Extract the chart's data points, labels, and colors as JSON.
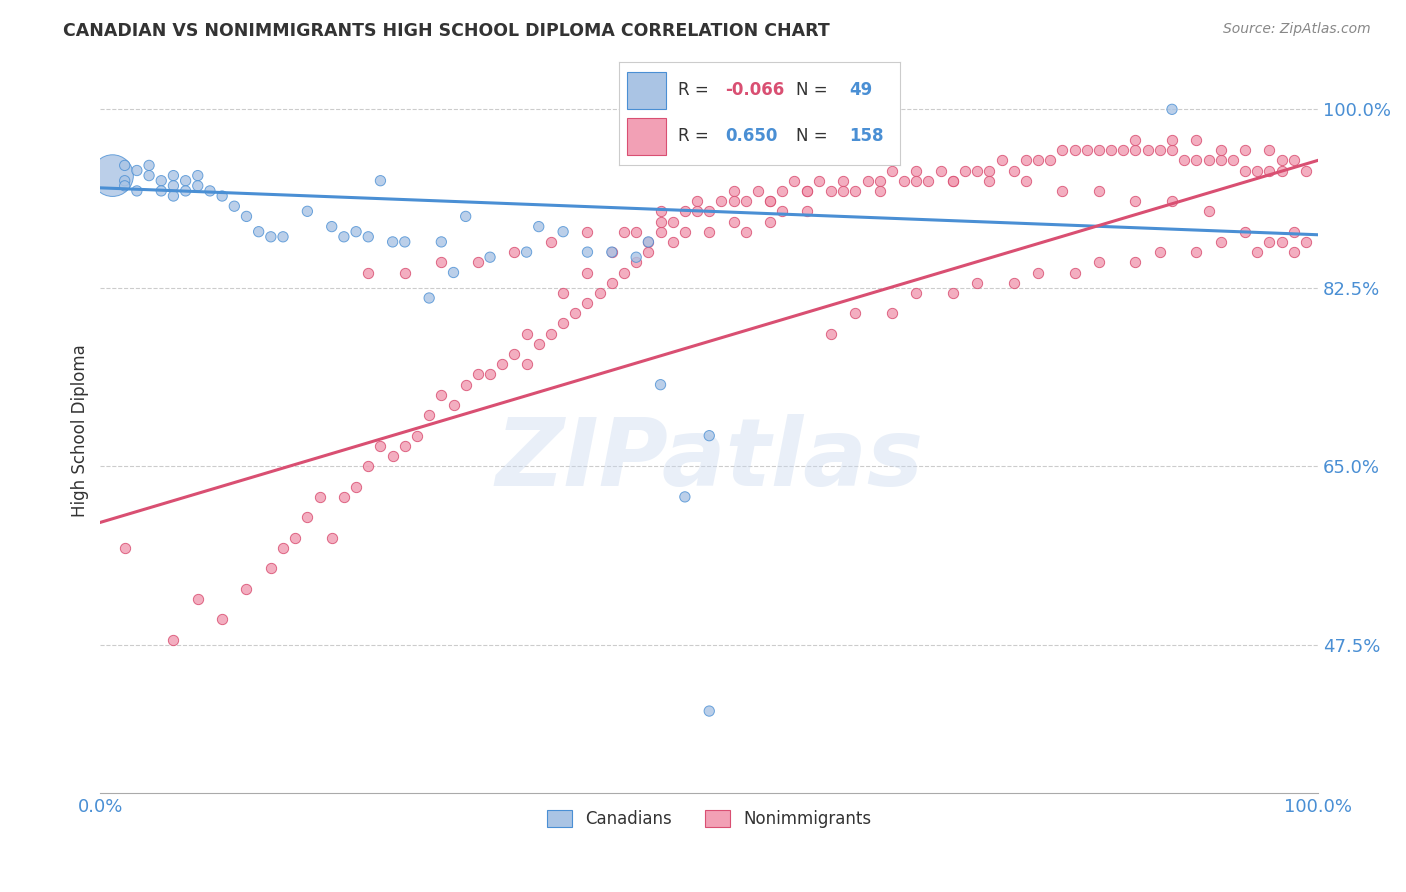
{
  "title": "CANADIAN VS NONIMMIGRANTS HIGH SCHOOL DIPLOMA CORRELATION CHART",
  "source": "Source: ZipAtlas.com",
  "ylabel": "High School Diploma",
  "xlim": [
    0,
    1
  ],
  "ylim": [
    0.33,
    1.04
  ],
  "yticks": [
    0.475,
    0.65,
    0.825,
    1.0
  ],
  "ytick_labels": [
    "47.5%",
    "65.0%",
    "82.5%",
    "100.0%"
  ],
  "xticks": [
    0.0,
    0.25,
    0.5,
    0.75,
    1.0
  ],
  "xtick_labels": [
    "0.0%",
    "",
    "",
    "",
    "100.0%"
  ],
  "legend_r_canadian": "-0.066",
  "legend_n_canadian": "49",
  "legend_r_nonimmigrant": "0.650",
  "legend_n_nonimmigrant": "158",
  "canadian_color": "#aac4e4",
  "nonimmigrant_color": "#f2a0b5",
  "canadian_line_color": "#4a8fd4",
  "nonimmigrant_line_color": "#d94f72",
  "background_color": "#ffffff",
  "grid_color": "#cccccc",
  "canadian_x": [
    0.01,
    0.02,
    0.02,
    0.02,
    0.03,
    0.03,
    0.04,
    0.04,
    0.05,
    0.05,
    0.06,
    0.06,
    0.06,
    0.07,
    0.07,
    0.08,
    0.08,
    0.09,
    0.1,
    0.11,
    0.12,
    0.13,
    0.14,
    0.15,
    0.17,
    0.19,
    0.2,
    0.21,
    0.22,
    0.23,
    0.24,
    0.25,
    0.27,
    0.28,
    0.29,
    0.3,
    0.32,
    0.35,
    0.36,
    0.38,
    0.4,
    0.42,
    0.44,
    0.45,
    0.46,
    0.48,
    0.5,
    0.88,
    0.5
  ],
  "canadian_y": [
    0.935,
    0.945,
    0.93,
    0.925,
    0.94,
    0.92,
    0.945,
    0.935,
    0.93,
    0.92,
    0.935,
    0.925,
    0.915,
    0.93,
    0.92,
    0.935,
    0.925,
    0.92,
    0.915,
    0.905,
    0.895,
    0.88,
    0.875,
    0.875,
    0.9,
    0.885,
    0.875,
    0.88,
    0.875,
    0.93,
    0.87,
    0.87,
    0.815,
    0.87,
    0.84,
    0.895,
    0.855,
    0.86,
    0.885,
    0.88,
    0.86,
    0.86,
    0.855,
    0.87,
    0.73,
    0.62,
    0.68,
    1.0,
    0.41
  ],
  "canadian_sizes_big": [
    0
  ],
  "nonimmigrant_x": [
    0.02,
    0.06,
    0.08,
    0.1,
    0.12,
    0.14,
    0.15,
    0.16,
    0.17,
    0.18,
    0.19,
    0.2,
    0.21,
    0.22,
    0.23,
    0.24,
    0.25,
    0.26,
    0.27,
    0.28,
    0.29,
    0.3,
    0.31,
    0.32,
    0.33,
    0.34,
    0.35,
    0.35,
    0.36,
    0.37,
    0.38,
    0.38,
    0.39,
    0.4,
    0.4,
    0.41,
    0.42,
    0.42,
    0.43,
    0.44,
    0.44,
    0.45,
    0.45,
    0.46,
    0.46,
    0.47,
    0.47,
    0.48,
    0.48,
    0.49,
    0.5,
    0.5,
    0.51,
    0.52,
    0.52,
    0.53,
    0.53,
    0.54,
    0.55,
    0.55,
    0.56,
    0.56,
    0.57,
    0.58,
    0.58,
    0.59,
    0.6,
    0.61,
    0.62,
    0.63,
    0.64,
    0.65,
    0.66,
    0.67,
    0.68,
    0.69,
    0.7,
    0.71,
    0.72,
    0.73,
    0.74,
    0.75,
    0.76,
    0.77,
    0.78,
    0.79,
    0.8,
    0.81,
    0.82,
    0.83,
    0.84,
    0.85,
    0.86,
    0.87,
    0.88,
    0.89,
    0.9,
    0.91,
    0.92,
    0.93,
    0.94,
    0.95,
    0.96,
    0.97,
    0.22,
    0.25,
    0.28,
    0.31,
    0.34,
    0.37,
    0.4,
    0.43,
    0.46,
    0.49,
    0.52,
    0.55,
    0.58,
    0.61,
    0.64,
    0.67,
    0.7,
    0.73,
    0.76,
    0.79,
    0.82,
    0.85,
    0.88,
    0.91,
    0.94,
    0.6,
    0.65,
    0.7,
    0.75,
    0.8,
    0.85,
    0.9,
    0.95,
    0.97,
    0.98,
    0.62,
    0.67,
    0.72,
    0.77,
    0.82,
    0.87,
    0.92,
    0.96,
    0.98,
    0.99,
    0.85,
    0.88,
    0.9,
    0.92,
    0.94,
    0.96,
    0.97,
    0.98,
    0.99
  ],
  "nonimmigrant_y": [
    0.57,
    0.48,
    0.52,
    0.5,
    0.53,
    0.55,
    0.57,
    0.58,
    0.6,
    0.62,
    0.58,
    0.62,
    0.63,
    0.65,
    0.67,
    0.66,
    0.67,
    0.68,
    0.7,
    0.72,
    0.71,
    0.73,
    0.74,
    0.74,
    0.75,
    0.76,
    0.75,
    0.78,
    0.77,
    0.78,
    0.79,
    0.82,
    0.8,
    0.81,
    0.84,
    0.82,
    0.83,
    0.86,
    0.84,
    0.85,
    0.88,
    0.87,
    0.86,
    0.88,
    0.9,
    0.89,
    0.87,
    0.9,
    0.88,
    0.91,
    0.9,
    0.88,
    0.91,
    0.89,
    0.92,
    0.91,
    0.88,
    0.92,
    0.91,
    0.89,
    0.92,
    0.9,
    0.93,
    0.92,
    0.9,
    0.93,
    0.92,
    0.93,
    0.92,
    0.93,
    0.93,
    0.94,
    0.93,
    0.94,
    0.93,
    0.94,
    0.93,
    0.94,
    0.94,
    0.94,
    0.95,
    0.94,
    0.95,
    0.95,
    0.95,
    0.96,
    0.96,
    0.96,
    0.96,
    0.96,
    0.96,
    0.96,
    0.96,
    0.96,
    0.96,
    0.95,
    0.95,
    0.95,
    0.95,
    0.95,
    0.94,
    0.94,
    0.94,
    0.94,
    0.84,
    0.84,
    0.85,
    0.85,
    0.86,
    0.87,
    0.88,
    0.88,
    0.89,
    0.9,
    0.91,
    0.91,
    0.92,
    0.92,
    0.92,
    0.93,
    0.93,
    0.93,
    0.93,
    0.92,
    0.92,
    0.91,
    0.91,
    0.9,
    0.88,
    0.78,
    0.8,
    0.82,
    0.83,
    0.84,
    0.85,
    0.86,
    0.86,
    0.87,
    0.86,
    0.8,
    0.82,
    0.83,
    0.84,
    0.85,
    0.86,
    0.87,
    0.87,
    0.88,
    0.87,
    0.97,
    0.97,
    0.97,
    0.96,
    0.96,
    0.96,
    0.95,
    0.95,
    0.94
  ],
  "blue_line_x": [
    0.0,
    1.0
  ],
  "blue_line_y": [
    0.923,
    0.877
  ],
  "pink_line_x": [
    0.0,
    1.0
  ],
  "pink_line_y": [
    0.595,
    0.95
  ]
}
